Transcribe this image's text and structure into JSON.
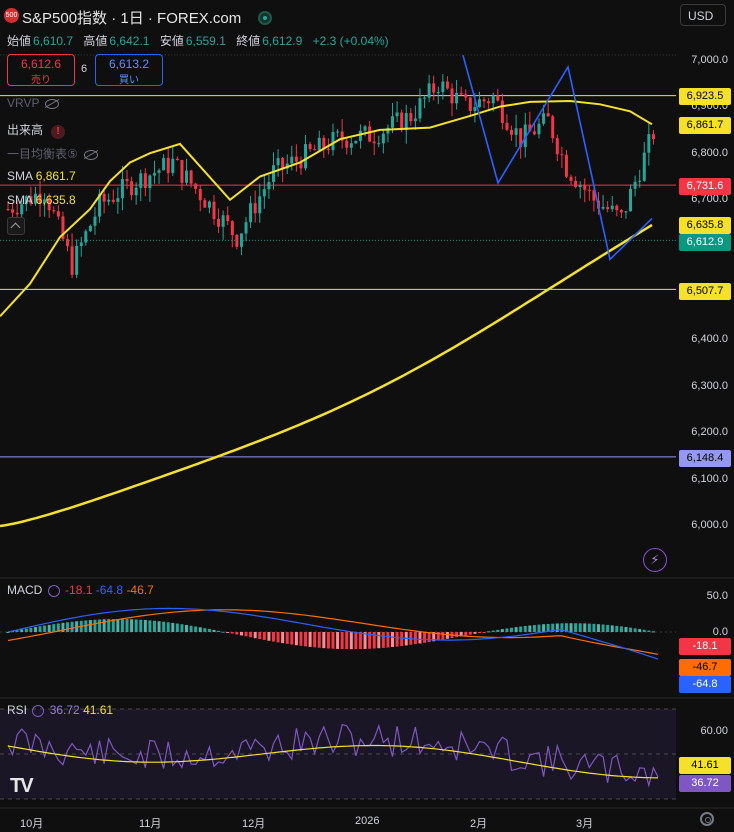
{
  "header": {
    "logo_text": "500",
    "title": "S&P500指数 · 1日 · FOREX.com",
    "currency": "USD"
  },
  "ohlc": {
    "open_label": "始値",
    "open": "6,610.7",
    "high_label": "高値",
    "high": "6,642.1",
    "low_label": "安値",
    "low": "6,559.1",
    "close_label": "終値",
    "close": "6,612.9",
    "change": "+2.3 (+0.04%)"
  },
  "trade": {
    "sell_price": "6,612.6",
    "sell_label": "売り",
    "spread": "6",
    "buy_price": "6,613.2",
    "buy_label": "買い"
  },
  "indicators": {
    "vrvp": "VRVP",
    "volume": "出来高",
    "ichimoku": "一目均衡表⑤",
    "sma1_label": "SMA",
    "sma1_value": "6,861.7",
    "sma2_label": "SMA",
    "sma2_value": "6,635.8",
    "macd_label": "MACD",
    "macd_hist": "-18.1",
    "macd_line": "-64.8",
    "macd_signal": "-46.7",
    "rsi_label": "RSI",
    "rsi_value": "36.72",
    "rsi_ma": "41.61"
  },
  "price_axis": [
    "7,000.0",
    "6,900.0",
    "6,800.0",
    "6,700.0",
    "6,400.0",
    "6,300.0",
    "6,200.0",
    "6,100.0",
    "6,000.0"
  ],
  "price_badges": [
    {
      "value": "6,923.5",
      "color": "#f5e12a",
      "text_color": "#000000"
    },
    {
      "value": "6,861.7",
      "color": "#f5e12a",
      "text_color": "#000000"
    },
    {
      "value": "6,731.6",
      "color": "#f23645",
      "text_color": "#ffffff"
    },
    {
      "value": "6,635.8",
      "color": "#f5e12a",
      "text_color": "#000000"
    },
    {
      "value": "6,612.9",
      "color": "#089981",
      "text_color": "#ffffff"
    },
    {
      "value": "6,507.7",
      "color": "#f5e12a",
      "text_color": "#000000"
    },
    {
      "value": "6,148.4",
      "color": "#9598f0",
      "text_color": "#000000"
    }
  ],
  "macd_axis": [
    "50.0",
    "0.0"
  ],
  "macd_badges": [
    {
      "value": "-18.1",
      "color": "#f23645",
      "text_color": "#ffffff"
    },
    {
      "value": "-46.7",
      "color": "#ff6d00",
      "text_color": "#000000"
    },
    {
      "value": "-64.8",
      "color": "#2962ff",
      "text_color": "#ffffff"
    }
  ],
  "rsi_axis": [
    "60.00"
  ],
  "rsi_badges": [
    {
      "value": "41.61",
      "color": "#f5e12a",
      "text_color": "#000000"
    },
    {
      "value": "36.72",
      "color": "#7e57c2",
      "text_color": "#ffffff"
    }
  ],
  "time_axis": [
    "10月",
    "11月",
    "12月",
    "2026",
    "2月",
    "3月"
  ],
  "chart_data": {
    "type": "candlestick",
    "ylim": [
      5940,
      7010
    ],
    "horizontal_lines": [
      6923.5,
      6731.6,
      6507.7,
      6148.4
    ],
    "sma_long_end": 6635.8,
    "sma_short_end": 6861.7,
    "last_close": 6612.9,
    "macd": {
      "hist": -18.1,
      "macd": -64.8,
      "signal": -46.7
    },
    "rsi": {
      "value": 36.72,
      "ma": 41.61
    },
    "colors": {
      "up": "#26a69a",
      "down": "#f23645",
      "sma": "#f5e12a",
      "pattern": "#2962ff"
    }
  }
}
